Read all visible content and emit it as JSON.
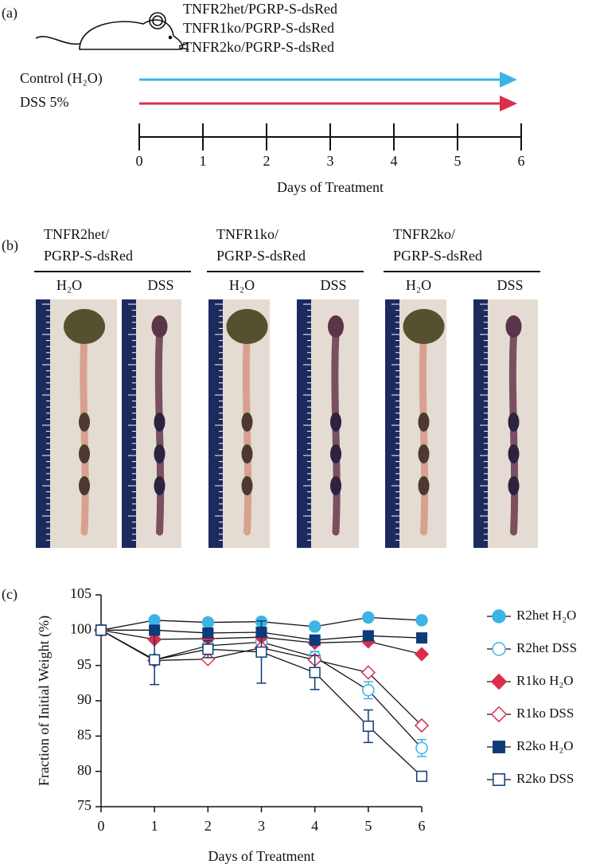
{
  "panel_a": {
    "label": "(a)",
    "strains": [
      "TNFR2het/PGRP-S-dsRed",
      "TNFR1ko/PGRP-S-dsRed",
      "TNFR2ko/PGRP-S-dsRed"
    ],
    "control_label": "Control (H₂O)",
    "dss_label": "DSS 5%",
    "control_color": "#3cb4e6",
    "dss_color": "#d8304a",
    "ticks": [
      0,
      1,
      2,
      3,
      4,
      5,
      6
    ],
    "axis_label": "Days of Treatment"
  },
  "panel_b": {
    "label": "(b)",
    "groups": [
      {
        "name": [
          "TNFR2het/",
          "PGRP-S-dsRed"
        ],
        "conditions": [
          "H₂O",
          "DSS"
        ]
      },
      {
        "name": [
          "TNFR1ko/",
          "PGRP-S-dsRed"
        ],
        "conditions": [
          "H₂O",
          "DSS"
        ]
      },
      {
        "name": [
          "TNFR2ko/",
          "PGRP-S-dsRed"
        ],
        "conditions": [
          "H₂O",
          "DSS"
        ]
      }
    ]
  },
  "panel_c": {
    "label": "(c)"
  },
  "chart_data": {
    "type": "line",
    "xlabel": "Days of Treatment",
    "ylabel": "Fraction of Initial Weight (%)",
    "x": [
      0,
      1,
      2,
      3,
      4,
      5,
      6
    ],
    "xlim": [
      0,
      6
    ],
    "xticks": [
      0,
      1,
      2,
      3,
      4,
      5,
      6
    ],
    "ylim": [
      75,
      105
    ],
    "yticks": [
      75,
      80,
      85,
      90,
      95,
      100,
      105
    ],
    "series": [
      {
        "name": "R2het H₂O",
        "color": "#3cb4e6",
        "marker": "circle",
        "filled": true,
        "values": [
          100,
          101.4,
          101.1,
          101.2,
          100.5,
          101.8,
          101.4
        ]
      },
      {
        "name": "R2het DSS",
        "color": "#3cb4e6",
        "marker": "circle",
        "filled": false,
        "values": [
          100,
          95.8,
          97.8,
          98.3,
          96.2,
          91.5,
          83.3
        ],
        "errors": [
          0,
          0.6,
          0.8,
          0.6,
          0.8,
          1.2,
          1.2
        ]
      },
      {
        "name": "R1ko H₂O",
        "color": "#d8304a",
        "marker": "diamond",
        "filled": true,
        "values": [
          100,
          98.7,
          98.8,
          99.0,
          98.2,
          98.4,
          96.6
        ]
      },
      {
        "name": "R1ko DSS",
        "color": "#d8304a",
        "marker": "diamond",
        "filled": false,
        "values": [
          100,
          95.7,
          95.9,
          97.5,
          95.8,
          94.0,
          86.5
        ]
      },
      {
        "name": "R2ko H₂O",
        "color": "#0d3b7a",
        "marker": "square",
        "filled": true,
        "values": [
          100,
          100,
          99.6,
          99.7,
          98.6,
          99.2,
          98.9
        ]
      },
      {
        "name": "R2ko DSS",
        "color": "#0d3b7a",
        "marker": "square",
        "filled": false,
        "values": [
          100,
          95.8,
          97.3,
          96.9,
          94.0,
          86.4,
          79.3
        ],
        "errors": [
          0,
          3.5,
          1.2,
          4.4,
          2.4,
          2.3,
          0.5
        ]
      }
    ]
  }
}
